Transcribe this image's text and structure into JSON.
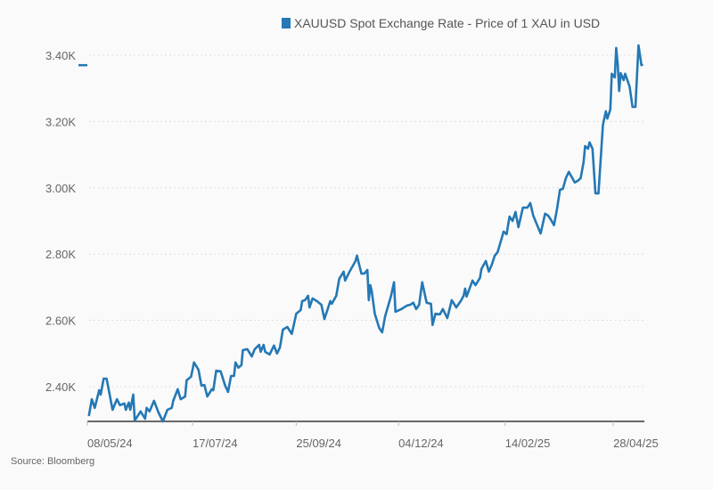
{
  "chart_data": {
    "type": "line",
    "title": "",
    "legend": [
      {
        "label": "XAUUSD Spot Exchange Rate - Price of 1 XAU in USD",
        "color": "#2478b5"
      }
    ],
    "legend_position": "top-center",
    "source": "Source: Bloomberg",
    "xlabel": "",
    "ylabel": "",
    "x_unit": "days since 08/05/24",
    "xlim": [
      0,
      376
    ],
    "ylim": [
      2295,
      3460
    ],
    "grid": "horizontal dotted",
    "x_ticks": [
      {
        "day": 0,
        "label": "08/05/24"
      },
      {
        "day": 71,
        "label": "17/07/24"
      },
      {
        "day": 141,
        "label": "25/09/24"
      },
      {
        "day": 210,
        "label": "04/12/24"
      },
      {
        "day": 282,
        "label": "14/02/25"
      },
      {
        "day": 355,
        "label": "28/04/25"
      }
    ],
    "y_ticks": [
      {
        "value": 2400,
        "label": "2.40K"
      },
      {
        "value": 2600,
        "label": "2.60K"
      },
      {
        "value": 2800,
        "label": "2.80K"
      },
      {
        "value": 3000,
        "label": "3.00K"
      },
      {
        "value": 3200,
        "label": "3.20K"
      },
      {
        "value": 3400,
        "label": "3.40K"
      }
    ],
    "last_value_marker": 3370,
    "series": [
      {
        "name": "XAUUSD",
        "color": "#2478b5",
        "points": [
          [
            1,
            2311
          ],
          [
            3,
            2362
          ],
          [
            5,
            2336
          ],
          [
            8,
            2389
          ],
          [
            9,
            2376
          ],
          [
            11,
            2424
          ],
          [
            13,
            2424
          ],
          [
            17,
            2330
          ],
          [
            20,
            2362
          ],
          [
            22,
            2344
          ],
          [
            25,
            2349
          ],
          [
            26,
            2330
          ],
          [
            28,
            2352
          ],
          [
            29,
            2330
          ],
          [
            31,
            2376
          ],
          [
            32,
            2298
          ],
          [
            36,
            2325
          ],
          [
            39,
            2303
          ],
          [
            40,
            2336
          ],
          [
            42,
            2325
          ],
          [
            45,
            2357
          ],
          [
            48,
            2322
          ],
          [
            51,
            2295
          ],
          [
            54,
            2330
          ],
          [
            57,
            2336
          ],
          [
            58,
            2357
          ],
          [
            61,
            2392
          ],
          [
            63,
            2362
          ],
          [
            66,
            2370
          ],
          [
            67,
            2419
          ],
          [
            70,
            2430
          ],
          [
            72,
            2473
          ],
          [
            75,
            2451
          ],
          [
            77,
            2403
          ],
          [
            79,
            2405
          ],
          [
            81,
            2370
          ],
          [
            84,
            2392
          ],
          [
            85,
            2389
          ],
          [
            87,
            2448
          ],
          [
            90,
            2446
          ],
          [
            93,
            2403
          ],
          [
            95,
            2384
          ],
          [
            97,
            2432
          ],
          [
            99,
            2432
          ],
          [
            100,
            2473
          ],
          [
            102,
            2457
          ],
          [
            104,
            2465
          ],
          [
            105,
            2510
          ],
          [
            108,
            2513
          ],
          [
            111,
            2491
          ],
          [
            113,
            2513
          ],
          [
            116,
            2526
          ],
          [
            117,
            2505
          ],
          [
            119,
            2526
          ],
          [
            120,
            2505
          ],
          [
            123,
            2497
          ],
          [
            126,
            2524
          ],
          [
            128,
            2500
          ],
          [
            130,
            2518
          ],
          [
            132,
            2572
          ],
          [
            135,
            2580
          ],
          [
            138,
            2559
          ],
          [
            141,
            2620
          ],
          [
            144,
            2631
          ],
          [
            145,
            2658
          ],
          [
            147,
            2661
          ],
          [
            149,
            2674
          ],
          [
            150,
            2639
          ],
          [
            152,
            2666
          ],
          [
            155,
            2658
          ],
          [
            158,
            2647
          ],
          [
            160,
            2604
          ],
          [
            164,
            2658
          ],
          [
            165,
            2650
          ],
          [
            168,
            2674
          ],
          [
            170,
            2725
          ],
          [
            173,
            2747
          ],
          [
            174,
            2720
          ],
          [
            177,
            2747
          ],
          [
            181,
            2779
          ],
          [
            182,
            2795
          ],
          [
            185,
            2741
          ],
          [
            187,
            2741
          ],
          [
            189,
            2752
          ],
          [
            190,
            2661
          ],
          [
            191,
            2706
          ],
          [
            192,
            2688
          ],
          [
            194,
            2620
          ],
          [
            197,
            2577
          ],
          [
            199,
            2564
          ],
          [
            201,
            2612
          ],
          [
            205,
            2674
          ],
          [
            207,
            2715
          ],
          [
            208,
            2626
          ],
          [
            212,
            2634
          ],
          [
            216,
            2645
          ],
          [
            218,
            2647
          ],
          [
            220,
            2653
          ],
          [
            222,
            2634
          ],
          [
            224,
            2647
          ],
          [
            226,
            2715
          ],
          [
            229,
            2653
          ],
          [
            232,
            2650
          ],
          [
            233,
            2586
          ],
          [
            235,
            2620
          ],
          [
            238,
            2618
          ],
          [
            240,
            2634
          ],
          [
            243,
            2607
          ],
          [
            246,
            2661
          ],
          [
            249,
            2639
          ],
          [
            252,
            2658
          ],
          [
            254,
            2674
          ],
          [
            255,
            2696
          ],
          [
            256,
            2672
          ],
          [
            260,
            2720
          ],
          [
            262,
            2706
          ],
          [
            265,
            2728
          ],
          [
            266,
            2755
          ],
          [
            269,
            2779
          ],
          [
            271,
            2747
          ],
          [
            273,
            2768
          ],
          [
            275,
            2795
          ],
          [
            277,
            2806
          ],
          [
            281,
            2868
          ],
          [
            283,
            2860
          ],
          [
            285,
            2913
          ],
          [
            287,
            2900
          ],
          [
            289,
            2927
          ],
          [
            291,
            2881
          ],
          [
            294,
            2940
          ],
          [
            297,
            2940
          ],
          [
            299,
            2954
          ],
          [
            301,
            2916
          ],
          [
            306,
            2862
          ],
          [
            309,
            2922
          ],
          [
            311,
            2916
          ],
          [
            313,
            2903
          ],
          [
            315,
            2887
          ],
          [
            317,
            2935
          ],
          [
            319,
            2994
          ],
          [
            321,
            2997
          ],
          [
            323,
            3029
          ],
          [
            325,
            3048
          ],
          [
            329,
            3016
          ],
          [
            331,
            3021
          ],
          [
            333,
            3029
          ],
          [
            335,
            3077
          ],
          [
            336,
            3126
          ],
          [
            338,
            3118
          ],
          [
            339,
            3137
          ],
          [
            341,
            3118
          ],
          [
            343,
            2983
          ],
          [
            345,
            2983
          ],
          [
            348,
            3190
          ],
          [
            350,
            3231
          ],
          [
            351,
            3209
          ],
          [
            353,
            3236
          ],
          [
            354,
            3344
          ],
          [
            356,
            3333
          ],
          [
            357,
            3422
          ],
          [
            358,
            3373
          ],
          [
            359,
            3292
          ],
          [
            360,
            3346
          ],
          [
            362,
            3325
          ],
          [
            363,
            3344
          ],
          [
            366,
            3306
          ],
          [
            368,
            3244
          ],
          [
            370,
            3244
          ],
          [
            372,
            3430
          ],
          [
            374,
            3370
          ],
          [
            375,
            3373
          ]
        ]
      }
    ]
  }
}
